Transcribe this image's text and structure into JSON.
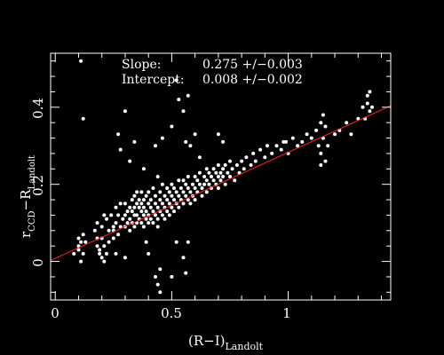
{
  "chart_data": {
    "type": "scatter",
    "colors": {
      "background": "#000000",
      "points": "#ffffff",
      "fit_line": "#ff2020",
      "frame": "#ffffff"
    },
    "xlim": [
      -0.02,
      1.44
    ],
    "ylim": [
      -0.1,
      0.54
    ],
    "grid": false,
    "x_ticks": [
      0,
      0.5,
      1
    ],
    "y_ticks": [
      0,
      0.2,
      0.4
    ],
    "x_tick_labels": [
      "0",
      "0.5",
      "1"
    ],
    "y_tick_labels": [
      "0",
      "0.2",
      "0.4"
    ],
    "xlabel": {
      "main": "(R−I)",
      "sub": "Landolt"
    },
    "ylabel": {
      "main1": "r",
      "sub1": "CCD",
      "main2": "−R",
      "sub2": "Landolt"
    },
    "annotations": [
      {
        "label": "Slope:",
        "value": "0.275 +/−0.003"
      },
      {
        "label": "Intercept:",
        "value": "0.008 +/−0.002"
      }
    ],
    "fit": {
      "slope": 0.275,
      "intercept": 0.008
    },
    "series": [
      {
        "points": [
          [
            0.1,
            0.06
          ],
          [
            0.1,
            0.04
          ],
          [
            0.11,
            0.05
          ],
          [
            0.1,
            0.03
          ],
          [
            0.12,
            0.02
          ],
          [
            0.11,
            0.0
          ],
          [
            0.13,
            0.05
          ],
          [
            0.12,
            0.07
          ],
          [
            0.17,
            0.08
          ],
          [
            0.18,
            0.06
          ],
          [
            0.18,
            0.04
          ],
          [
            0.19,
            0.02
          ],
          [
            0.18,
            0.1
          ],
          [
            0.2,
            0.09
          ],
          [
            0.2,
            0.06
          ],
          [
            0.21,
            0.04
          ],
          [
            0.21,
            0.12
          ],
          [
            0.22,
            0.11
          ],
          [
            0.19,
            0.03
          ],
          [
            0.2,
            0.01
          ],
          [
            0.21,
            0.0
          ],
          [
            0.22,
            0.02
          ],
          [
            0.23,
            0.05
          ],
          [
            0.23,
            0.08
          ],
          [
            0.24,
            0.12
          ],
          [
            0.25,
            0.09
          ],
          [
            0.25,
            0.06
          ],
          [
            0.26,
            0.14
          ],
          [
            0.26,
            0.1
          ],
          [
            0.27,
            0.07
          ],
          [
            0.27,
            0.12
          ],
          [
            0.28,
            0.09
          ],
          [
            0.28,
            0.15
          ],
          [
            0.29,
            0.11
          ],
          [
            0.3,
            0.12
          ],
          [
            0.3,
            0.09
          ],
          [
            0.3,
            0.15
          ],
          [
            0.31,
            0.13
          ],
          [
            0.31,
            0.1
          ],
          [
            0.32,
            0.14
          ],
          [
            0.32,
            0.11
          ],
          [
            0.32,
            0.08
          ],
          [
            0.33,
            0.16
          ],
          [
            0.33,
            0.13
          ],
          [
            0.33,
            0.1
          ],
          [
            0.34,
            0.14
          ],
          [
            0.34,
            0.12
          ],
          [
            0.34,
            0.09
          ],
          [
            0.34,
            0.17
          ],
          [
            0.35,
            0.15
          ],
          [
            0.35,
            0.12
          ],
          [
            0.35,
            0.1
          ],
          [
            0.35,
            0.18
          ],
          [
            0.36,
            0.14
          ],
          [
            0.36,
            0.11
          ],
          [
            0.36,
            0.16
          ],
          [
            0.37,
            0.13
          ],
          [
            0.37,
            0.1
          ],
          [
            0.37,
            0.15
          ],
          [
            0.37,
            0.18
          ],
          [
            0.38,
            0.14
          ],
          [
            0.38,
            0.12
          ],
          [
            0.38,
            0.09
          ],
          [
            0.38,
            0.16
          ],
          [
            0.39,
            0.13
          ],
          [
            0.39,
            0.11
          ],
          [
            0.39,
            0.17
          ],
          [
            0.4,
            0.15
          ],
          [
            0.4,
            0.12
          ],
          [
            0.4,
            0.1
          ],
          [
            0.4,
            0.18
          ],
          [
            0.41,
            0.14
          ],
          [
            0.41,
            0.11
          ],
          [
            0.41,
            0.16
          ],
          [
            0.42,
            0.13
          ],
          [
            0.42,
            0.1
          ],
          [
            0.42,
            0.19
          ],
          [
            0.43,
            0.15
          ],
          [
            0.43,
            0.12
          ],
          [
            0.43,
            0.17
          ],
          [
            0.44,
            0.14
          ],
          [
            0.44,
            0.11
          ],
          [
            0.44,
            0.09
          ],
          [
            0.45,
            0.16
          ],
          [
            0.45,
            0.13
          ],
          [
            0.45,
            0.18
          ],
          [
            0.46,
            0.15
          ],
          [
            0.46,
            0.12
          ],
          [
            0.46,
            0.2
          ],
          [
            0.47,
            0.14
          ],
          [
            0.47,
            0.17
          ],
          [
            0.47,
            0.11
          ],
          [
            0.48,
            0.16
          ],
          [
            0.48,
            0.13
          ],
          [
            0.48,
            0.19
          ],
          [
            0.49,
            0.15
          ],
          [
            0.49,
            0.18
          ],
          [
            0.49,
            0.12
          ],
          [
            0.5,
            0.17
          ],
          [
            0.5,
            0.14
          ],
          [
            0.5,
            0.2
          ],
          [
            0.51,
            0.16
          ],
          [
            0.51,
            0.13
          ],
          [
            0.51,
            0.19
          ],
          [
            0.52,
            0.15
          ],
          [
            0.52,
            0.18
          ],
          [
            0.53,
            0.17
          ],
          [
            0.53,
            0.21
          ],
          [
            0.53,
            0.14
          ],
          [
            0.54,
            0.16
          ],
          [
            0.54,
            0.19
          ],
          [
            0.55,
            0.18
          ],
          [
            0.55,
            0.15
          ],
          [
            0.55,
            0.21
          ],
          [
            0.56,
            0.17
          ],
          [
            0.56,
            0.2
          ],
          [
            0.57,
            0.16
          ],
          [
            0.57,
            0.19
          ],
          [
            0.57,
            0.22
          ],
          [
            0.58,
            0.18
          ],
          [
            0.58,
            0.15
          ],
          [
            0.59,
            0.2
          ],
          [
            0.59,
            0.17
          ],
          [
            0.6,
            0.19
          ],
          [
            0.6,
            0.22
          ],
          [
            0.6,
            0.16
          ],
          [
            0.61,
            0.21
          ],
          [
            0.61,
            0.18
          ],
          [
            0.62,
            0.2
          ],
          [
            0.62,
            0.23
          ],
          [
            0.63,
            0.19
          ],
          [
            0.63,
            0.17
          ],
          [
            0.64,
            0.22
          ],
          [
            0.64,
            0.2
          ],
          [
            0.65,
            0.21
          ],
          [
            0.65,
            0.24
          ],
          [
            0.65,
            0.18
          ],
          [
            0.66,
            0.2
          ],
          [
            0.66,
            0.23
          ],
          [
            0.67,
            0.22
          ],
          [
            0.67,
            0.19
          ],
          [
            0.68,
            0.21
          ],
          [
            0.68,
            0.24
          ],
          [
            0.69,
            0.2
          ],
          [
            0.69,
            0.23
          ],
          [
            0.7,
            0.22
          ],
          [
            0.7,
            0.25
          ],
          [
            0.7,
            0.19
          ],
          [
            0.71,
            0.23
          ],
          [
            0.71,
            0.21
          ],
          [
            0.72,
            0.24
          ],
          [
            0.72,
            0.22
          ],
          [
            0.73,
            0.2
          ],
          [
            0.73,
            0.25
          ],
          [
            0.74,
            0.23
          ],
          [
            0.75,
            0.22
          ],
          [
            0.75,
            0.26
          ],
          [
            0.76,
            0.24
          ],
          [
            0.77,
            0.21
          ],
          [
            0.78,
            0.25
          ],
          [
            0.79,
            0.23
          ],
          [
            0.8,
            0.26
          ],
          [
            0.81,
            0.24
          ],
          [
            0.82,
            0.27
          ],
          [
            0.84,
            0.25
          ],
          [
            0.85,
            0.28
          ],
          [
            0.86,
            0.26
          ],
          [
            0.88,
            0.29
          ],
          [
            0.9,
            0.27
          ],
          [
            0.91,
            0.3
          ],
          [
            0.93,
            0.28
          ],
          [
            0.95,
            0.3
          ],
          [
            0.97,
            0.29
          ],
          [
            0.99,
            0.31
          ],
          [
            1.0,
            0.28
          ],
          [
            1.02,
            0.32
          ],
          [
            1.04,
            0.3
          ],
          [
            1.06,
            0.31
          ],
          [
            1.08,
            0.33
          ],
          [
            1.1,
            0.32
          ],
          [
            1.12,
            0.34
          ],
          [
            1.13,
            0.3
          ],
          [
            1.14,
            0.28
          ],
          [
            1.14,
            0.36
          ],
          [
            1.15,
            0.32
          ],
          [
            1.15,
            0.38
          ],
          [
            1.16,
            0.35
          ],
          [
            1.16,
            0.26
          ],
          [
            1.17,
            0.3
          ],
          [
            1.2,
            0.33
          ],
          [
            1.22,
            0.34
          ],
          [
            1.25,
            0.36
          ],
          [
            1.27,
            0.33
          ],
          [
            1.3,
            0.37
          ],
          [
            1.32,
            0.4
          ],
          [
            1.33,
            0.37
          ],
          [
            1.34,
            0.43
          ],
          [
            1.34,
            0.41
          ],
          [
            1.35,
            0.39
          ],
          [
            1.35,
            0.44
          ],
          [
            1.36,
            0.4
          ],
          [
            0.11,
            0.52
          ],
          [
            0.12,
            0.37
          ],
          [
            0.27,
            0.33
          ],
          [
            0.28,
            0.29
          ],
          [
            0.3,
            0.39
          ],
          [
            0.32,
            0.26
          ],
          [
            0.34,
            0.31
          ],
          [
            0.38,
            0.24
          ],
          [
            0.43,
            0.3
          ],
          [
            0.44,
            0.22
          ],
          [
            0.46,
            0.32
          ],
          [
            0.5,
            0.35
          ],
          [
            0.52,
            0.47
          ],
          [
            0.53,
            0.42
          ],
          [
            0.55,
            0.39
          ],
          [
            0.56,
            0.31
          ],
          [
            0.57,
            0.43
          ],
          [
            0.58,
            0.3
          ],
          [
            0.6,
            0.33
          ],
          [
            0.62,
            0.27
          ],
          [
            0.7,
            0.33
          ],
          [
            0.72,
            0.31
          ],
          [
            0.98,
            0.31
          ],
          [
            1.14,
            0.25
          ],
          [
            0.43,
            -0.04
          ],
          [
            0.44,
            -0.06
          ],
          [
            0.45,
            -0.08
          ],
          [
            0.45,
            -0.02
          ],
          [
            0.5,
            -0.04
          ],
          [
            0.55,
            0.01
          ],
          [
            0.56,
            -0.03
          ],
          [
            0.57,
            0.05
          ],
          [
            0.3,
            0.01
          ],
          [
            0.08,
            0.02
          ],
          [
            0.26,
            0.02
          ],
          [
            0.25,
            0.08
          ],
          [
            0.39,
            0.05
          ],
          [
            0.4,
            0.02
          ],
          [
            0.52,
            0.05
          ]
        ]
      }
    ]
  }
}
